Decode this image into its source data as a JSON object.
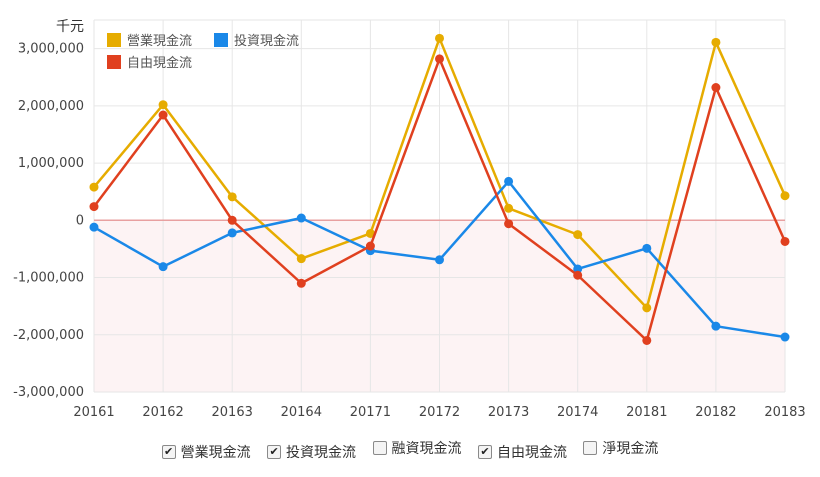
{
  "chart_data": {
    "type": "line",
    "unit_label": "千元",
    "categories": [
      "20161",
      "20162",
      "20163",
      "20164",
      "20171",
      "20172",
      "20173",
      "20174",
      "20181",
      "20182",
      "20183"
    ],
    "ylim": [
      -3000000,
      3500000
    ],
    "yticks": [
      3000000,
      2000000,
      1000000,
      0,
      -1000000,
      -2000000,
      -3000000
    ],
    "ytick_labels": [
      "3,000,000",
      "2,000,000",
      "1,000,000",
      "0",
      "-1,000,000",
      "-2,000,000",
      "-3,000,000"
    ],
    "grid": true,
    "legend_position": "top-left",
    "series": [
      {
        "name": "營業現金流",
        "color": "#e6ac00",
        "values": [
          580000,
          2020000,
          410000,
          -670000,
          -230000,
          3180000,
          210000,
          -250000,
          -1530000,
          3110000,
          430000
        ]
      },
      {
        "name": "投資現金流",
        "color": "#1a88e8",
        "values": [
          -120000,
          -810000,
          -220000,
          40000,
          -530000,
          -690000,
          680000,
          -850000,
          -490000,
          -1850000,
          -2040000
        ]
      },
      {
        "name": "自由現金流",
        "color": "#e0401f",
        "values": [
          240000,
          1840000,
          0,
          -1100000,
          -450000,
          2820000,
          -60000,
          -960000,
          -2100000,
          2320000,
          -370000
        ]
      }
    ]
  },
  "controls": [
    {
      "label": "營業現金流",
      "checked": true,
      "mark": "✔"
    },
    {
      "label": "投資現金流",
      "checked": true,
      "mark": "✔"
    },
    {
      "label": "融資現金流",
      "checked": false,
      "mark": ""
    },
    {
      "label": "自由現金流",
      "checked": true,
      "mark": "✔"
    },
    {
      "label": "淨現金流",
      "checked": false,
      "mark": ""
    }
  ]
}
